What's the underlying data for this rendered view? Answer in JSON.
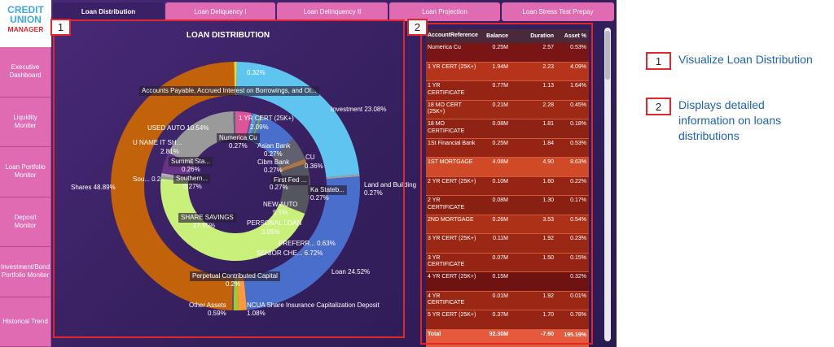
{
  "logo": {
    "line1": "CREDIT",
    "line2": "UNION",
    "line3": "MANAGER"
  },
  "nav": [
    "Executive Dashboard",
    "Liquidity Moniter",
    "Loan Portfolio Monitor",
    "Deposit Monitor",
    "Investment/Bond Portfolio Moniter",
    "Historical Trend"
  ],
  "tabs": [
    "Loan Distribution",
    "Loan Deliquency I",
    "Loan Delinquency II",
    "Loan Projection",
    "Loan Stress Test Prepay"
  ],
  "chart": {
    "title": "LOAN DISTRIBUTION"
  },
  "chart_data": {
    "type": "pie",
    "title": "LOAN DISTRIBUTION",
    "outer_series": [
      {
        "label": "Shares",
        "value": 48.89,
        "color": "#c2620a"
      },
      {
        "label": "Accounts Payable, Accrued Interest on Borrowings, and Ot...",
        "value": 0.32,
        "color": "#dddd33"
      },
      {
        "label": "Investment",
        "value": 23.08,
        "color": "#5fc5f0"
      },
      {
        "label": "Land and Building",
        "value": 0.27,
        "color": "#a0a0a0"
      },
      {
        "label": "Loan",
        "value": 24.52,
        "color": "#4a6ecc"
      },
      {
        "label": "NCUA Share Insurance Capitalization Deposit",
        "value": 1.08,
        "color": "#ff9a3c"
      },
      {
        "label": "Other Assets",
        "value": 0.59,
        "color": "#9acd32"
      },
      {
        "label": "Perpetual Contributed Capital",
        "value": 0.2,
        "color": "#6e4b8e"
      }
    ],
    "inner_series": [
      {
        "label": "1 YR CERT (25K+)",
        "value": 2.09
      },
      {
        "label": "Numerica Cu",
        "value": 0.27
      },
      {
        "label": "Asian Bank",
        "value": 0.27
      },
      {
        "label": "CU",
        "value": 0.36
      },
      {
        "label": "Cibm Bank",
        "value": 0.27
      },
      {
        "label": "Ka Stateb...",
        "value": 0.27
      },
      {
        "label": "First Fed ...",
        "value": 0.27
      },
      {
        "label": "NEW AUTO",
        "value": 5.1
      },
      {
        "label": "PERSONAL LOAN",
        "value": 3.05
      },
      {
        "label": "PREFERR...",
        "value": 0.63
      },
      {
        "label": "SENIOR CHE...",
        "value": 6.72
      },
      {
        "label": "SHARE SAVINGS",
        "value": 27.95
      },
      {
        "label": "Southern...",
        "value": 0.27
      },
      {
        "label": "Summit Sta...",
        "value": 0.26
      },
      {
        "label": "Sou... 0.2...",
        "value": 0.2
      },
      {
        "label": "U NAME IT SH...",
        "value": 2.81
      },
      {
        "label": "USED AUTO",
        "value": 10.54
      }
    ]
  },
  "labels": {
    "top032": "0.32%",
    "accounts": "Accounts Payable, Accrued Interest on Borrowings, and Ot...",
    "investment": "Investment 23.08%",
    "land": "Land and Building",
    "land_pct": "0.27%",
    "loan": "Loan 24.52%",
    "ncua": "NCUA Share Insurance Capitalization Deposit",
    "ncua_pct": "1.08%",
    "other": "Other Assets",
    "other_pct": "0.59%",
    "perpetual": "Perpetual Contributed Capital",
    "perpetual_pct": "0.2%",
    "shares": "Shares 48.89%",
    "used_auto": "USED AUTO 10.54%",
    "uname": "U NAME IT SH...",
    "uname_pct": "2.81%",
    "sou": "Sou... 0.2...",
    "summit": "Summit Sta...",
    "summit_pct": "0.26%",
    "southern": "Southern...",
    "southern_pct": "0.27%",
    "cert1yr": "1 YR CERT (25K+)",
    "cert1yr_pct": "2.09%",
    "numerica": "Numerica Cu",
    "numerica_pct": "0.27%",
    "asian": "Asian Bank",
    "asian_pct": "0.27%",
    "cu": "CU",
    "cu_pct": "0.36%",
    "cibm": "Cibm Bank",
    "cibm_pct": "0.27%",
    "ka": "Ka Stateb...",
    "ka_pct": "0.27%",
    "firstfed": "First Fed ...",
    "firstfed_pct": "0.27%",
    "newauto": "NEW AUTO",
    "newauto_pct": "5.1%",
    "personal": "PERSONAL LOAN",
    "personal_pct": "3.05%",
    "preferr": "PREFERR... 0.63%",
    "senior": "SENIOR CHE... 6.72%",
    "share_savings": "SHARE SAVINGS",
    "share_savings_pct": "27.95%"
  },
  "table": {
    "headers": [
      "AccountReference",
      "Balance",
      "Duration",
      "Asset %"
    ],
    "rows": [
      {
        "ref": "Numerica Cu",
        "balance": "0.25M",
        "duration": "2.57",
        "asset": "0.53%",
        "color": "#7a1515"
      },
      {
        "ref": "1 YR CERT (25K+)",
        "balance": "1.94M",
        "duration": "2.23",
        "asset": "4.09%",
        "color": "#b6331c"
      },
      {
        "ref": "1 YR CERTIFICATE",
        "balance": "0.77M",
        "duration": "1.13",
        "asset": "1.64%",
        "color": "#962414"
      },
      {
        "ref": "18 MO CERT (25K+)",
        "balance": "0.21M",
        "duration": "2.28",
        "asset": "0.45%",
        "color": "#9e2a16"
      },
      {
        "ref": "18 MO CERTIFICATE",
        "balance": "0.08M",
        "duration": "1.81",
        "asset": "0.18%",
        "color": "#8e2214"
      },
      {
        "ref": "1St Financial Bank",
        "balance": "0.25M",
        "duration": "1.84",
        "asset": "0.53%",
        "color": "#962414"
      },
      {
        "ref": "1ST MORTGAGE",
        "balance": "4.08M",
        "duration": "4.90",
        "asset": "8.63%",
        "color": "#d04a28"
      },
      {
        "ref": "2 YR CERT (25K+)",
        "balance": "0.10M",
        "duration": "1.60",
        "asset": "0.22%",
        "color": "#952414"
      },
      {
        "ref": "2 YR CERTIFICATE",
        "balance": "0.08M",
        "duration": "1.30",
        "asset": "0.17%",
        "color": "#8a2012"
      },
      {
        "ref": "2ND MORTGAGE",
        "balance": "0.26M",
        "duration": "3.53",
        "asset": "0.54%",
        "color": "#ad3019"
      },
      {
        "ref": "3 YR CERT (25K+)",
        "balance": "0.11M",
        "duration": "1.92",
        "asset": "0.23%",
        "color": "#9a2815"
      },
      {
        "ref": "3 YR CERTIFICATE",
        "balance": "0.07M",
        "duration": "1.50",
        "asset": "0.15%",
        "color": "#952414"
      },
      {
        "ref": "4 YR CERT (25K+)",
        "balance": "0.15M",
        "duration": "",
        "asset": "0.32%",
        "color": "#6e1212"
      },
      {
        "ref": "4 YR CERTIFICATE",
        "balance": "0.01M",
        "duration": "1.92",
        "asset": "0.01%",
        "color": "#9a2815"
      },
      {
        "ref": "5 YR CERT (25K+)",
        "balance": "0.37M",
        "duration": "1.70",
        "asset": "0.78%",
        "color": "#962414"
      }
    ],
    "total": {
      "ref": "Total",
      "balance": "92.30M",
      "duration": "-7.60",
      "asset": "195.19%"
    }
  },
  "badges": {
    "one": "1",
    "two": "2"
  },
  "legend": [
    {
      "num": "1",
      "text": "Visualize Loan Distribution"
    },
    {
      "num": "2",
      "text": "Displays detailed information on loans distributions"
    }
  ]
}
